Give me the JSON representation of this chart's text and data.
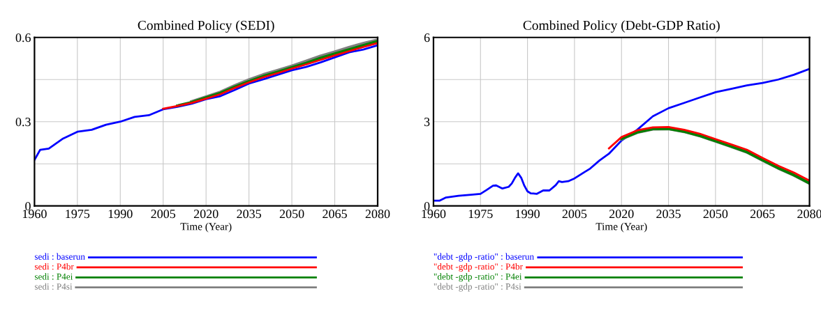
{
  "chart_data": [
    {
      "type": "line",
      "title": "Combined Policy (SEDI)",
      "xlabel": "Time (Year)",
      "xlim": [
        1960,
        2080
      ],
      "xticks": [
        1960,
        1975,
        1990,
        2005,
        2020,
        2035,
        2050,
        2065,
        2080
      ],
      "ylim": [
        0,
        0.6
      ],
      "yticks": [
        0,
        {
          "value": 0.15,
          "label": null
        },
        0.3,
        {
          "value": 0.45,
          "label": null
        },
        0.6
      ],
      "grid": true,
      "legend": "bottom",
      "line_style": "solid",
      "marker": "none",
      "x": [
        1960,
        1962,
        1965,
        1970,
        1975,
        1980,
        1985,
        1990,
        1995,
        2000,
        2005,
        2010,
        2015,
        2020,
        2025,
        2030,
        2035,
        2040,
        2045,
        2050,
        2055,
        2060,
        2065,
        2070,
        2075,
        2080
      ],
      "series": [
        {
          "name": "sedi : baserun",
          "color": "#0000ff",
          "values": [
            0.164,
            0.2,
            0.204,
            0.24,
            0.264,
            0.271,
            0.289,
            0.3,
            0.317,
            0.323,
            0.344,
            0.353,
            0.364,
            0.38,
            0.391,
            0.413,
            0.436,
            0.451,
            0.467,
            0.483,
            0.495,
            0.511,
            0.529,
            0.547,
            0.557,
            0.572
          ]
        },
        {
          "name": "sedi : P4br",
          "color": "#ff0000",
          "x": [
            2005,
            2010,
            2015,
            2020,
            2025,
            2030,
            2035,
            2040,
            2045,
            2050,
            2055,
            2060,
            2065,
            2070,
            2075,
            2080
          ],
          "values": [
            0.346,
            0.356,
            0.367,
            0.382,
            0.398,
            0.42,
            0.44,
            0.458,
            0.473,
            0.489,
            0.504,
            0.52,
            0.536,
            0.551,
            0.566,
            0.58
          ]
        },
        {
          "name": "sedi : P4ei",
          "color": "#008000",
          "x": [
            2010,
            2015,
            2020,
            2025,
            2030,
            2035,
            2040,
            2045,
            2050,
            2055,
            2060,
            2065,
            2070,
            2075,
            2080
          ],
          "values": [
            0.357,
            0.369,
            0.386,
            0.402,
            0.424,
            0.444,
            0.462,
            0.477,
            0.493,
            0.509,
            0.527,
            0.542,
            0.557,
            0.572,
            0.587
          ]
        },
        {
          "name": "sedi : P4si",
          "color": "#808080",
          "x": [
            2015,
            2020,
            2025,
            2030,
            2035,
            2040,
            2045,
            2050,
            2055,
            2060,
            2065,
            2070,
            2075,
            2080
          ],
          "values": [
            0.371,
            0.388,
            0.405,
            0.428,
            0.449,
            0.467,
            0.482,
            0.498,
            0.515,
            0.533,
            0.548,
            0.564,
            0.578,
            0.591
          ]
        }
      ]
    },
    {
      "type": "line",
      "title": "Combined Policy (Debt-GDP Ratio)",
      "xlabel": "Time (Year)",
      "xlim": [
        1960,
        2080
      ],
      "xticks": [
        1960,
        1975,
        1990,
        2005,
        2020,
        2035,
        2050,
        2065,
        2080
      ],
      "ylim": [
        0,
        6
      ],
      "yticks": [
        0,
        {
          "value": 1.5,
          "label": null
        },
        3,
        {
          "value": 4.5,
          "label": null
        },
        6
      ],
      "grid": true,
      "legend": "bottom",
      "line_style": "solid",
      "marker": "none",
      "x": [
        1960,
        1962,
        1964,
        1968,
        1972,
        1975,
        1977,
        1979,
        1980,
        1982,
        1984,
        1985,
        1986,
        1987,
        1988,
        1989,
        1990,
        1991,
        1993,
        1995,
        1997,
        1999,
        2000,
        2001,
        2003,
        2005,
        2008,
        2010,
        2013,
        2016,
        2020,
        2025,
        2030,
        2035,
        2040,
        2045,
        2050,
        2055,
        2060,
        2065,
        2070,
        2075,
        2080
      ],
      "series": [
        {
          "name": "\"debt -gdp -ratio\" : baserun",
          "color": "#0000ff",
          "values": [
            0.19,
            0.19,
            0.3,
            0.36,
            0.4,
            0.43,
            0.57,
            0.72,
            0.73,
            0.62,
            0.68,
            0.8,
            1.0,
            1.16,
            1.0,
            0.72,
            0.52,
            0.45,
            0.43,
            0.55,
            0.55,
            0.74,
            0.88,
            0.85,
            0.88,
            0.98,
            1.19,
            1.33,
            1.62,
            1.86,
            2.33,
            2.71,
            3.19,
            3.48,
            3.67,
            3.86,
            4.05,
            4.17,
            4.29,
            4.38,
            4.5,
            4.67,
            4.88
          ]
        },
        {
          "name": "\"debt -gdp -ratio\" : P4br",
          "color": "#ff0000",
          "x": [
            2016,
            2020,
            2025,
            2030,
            2035,
            2040,
            2045,
            2050,
            2055,
            2060,
            2065,
            2070,
            2075,
            2080
          ],
          "values": [
            2.05,
            2.45,
            2.69,
            2.8,
            2.81,
            2.71,
            2.57,
            2.38,
            2.19,
            2.0,
            1.71,
            1.43,
            1.19,
            0.9
          ]
        },
        {
          "name": "\"debt -gdp -ratio\" : P4ei",
          "color": "#008000",
          "x": [
            2020,
            2025,
            2030,
            2035,
            2040,
            2045,
            2050,
            2055,
            2060,
            2065,
            2070,
            2075,
            2080
          ],
          "values": [
            2.39,
            2.62,
            2.74,
            2.75,
            2.65,
            2.5,
            2.31,
            2.12,
            1.92,
            1.63,
            1.35,
            1.1,
            0.81
          ]
        },
        {
          "name": "\"debt -gdp -ratio\" : P4si",
          "color": "#808080",
          "x": [
            2020,
            2025,
            2030,
            2035,
            2040,
            2045,
            2050,
            2055,
            2060,
            2065,
            2070,
            2075,
            2080
          ],
          "values": [
            2.39,
            2.62,
            2.74,
            2.75,
            2.65,
            2.5,
            2.31,
            2.12,
            1.92,
            1.63,
            1.35,
            1.1,
            0.81
          ]
        }
      ]
    }
  ]
}
